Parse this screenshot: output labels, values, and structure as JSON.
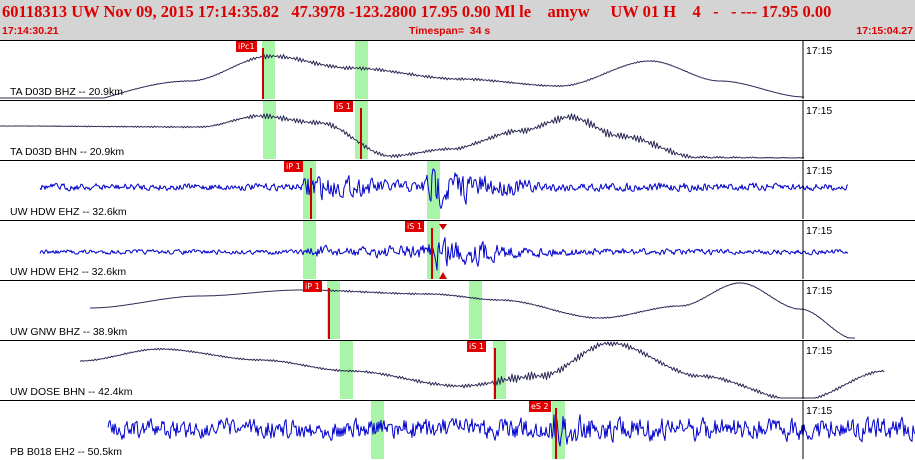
{
  "header": {
    "info_line": "60118313 UW Nov 09, 2015 17:14:35.82   47.3978 -123.2800 17.95 0.90 Ml le    amyw     UW 01 H    4   -   - --- 17.95 0.00",
    "start_time": "17:14:30.21",
    "timespan": "Timespan=  34 s",
    "end_time": "17:15:04.27"
  },
  "colors": {
    "text_red": "#dd0000",
    "pick_red": "#e00000",
    "guide_green": "#a8f5a8",
    "trace_dark": "#2a2a55",
    "trace_blue": "#0000cc",
    "background": "#d4d4d4"
  },
  "panels": [
    {
      "label": "TA D03D BHZ -- 20.9km",
      "tick": "17:15",
      "pick": "iPc1",
      "style": "smooth",
      "color_key": "trace_dark"
    },
    {
      "label": "TA D03D BHN -- 20.9km",
      "tick": "17:15",
      "pick": "iS 1",
      "style": "smooth",
      "color_key": "trace_dark"
    },
    {
      "label": "UW HDW EHZ -- 32.6km",
      "tick": "17:15",
      "pick": "iP 1",
      "style": "noisy",
      "color_key": "trace_blue"
    },
    {
      "label": "UW HDW EH2 -- 32.6km",
      "tick": "17:15",
      "pick": "iS 1",
      "style": "noisy",
      "color_key": "trace_blue"
    },
    {
      "label": "UW GNW BHZ -- 38.9km",
      "tick": "17:15",
      "pick": "iP 1",
      "style": "smooth",
      "color_key": "trace_dark"
    },
    {
      "label": "UW DOSE BHN -- 42.4km",
      "tick": "17:15",
      "pick": "iS 1",
      "style": "smooth",
      "color_key": "trace_dark"
    },
    {
      "label": "PB B018 EH2 -- 50.5km",
      "tick": "17:15",
      "pick": "eS 2",
      "style": "noisy",
      "color_key": "trace_blue"
    }
  ]
}
